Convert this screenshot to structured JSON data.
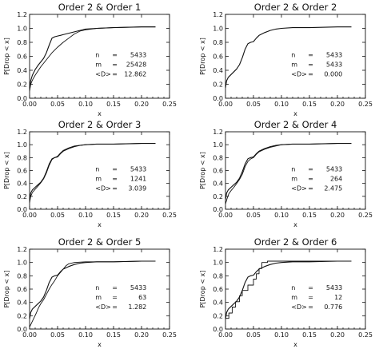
{
  "chart_data": [
    {
      "type": "line",
      "title": "Order 2 & Order 1",
      "xlabel": "x",
      "ylabel": "P[Drop < x]",
      "xlim": [
        0,
        0.25
      ],
      "ylim": [
        0,
        1.2
      ],
      "xticks": [
        "0.00",
        "0.05",
        "0.10",
        "0.15",
        "0.20",
        "0.25"
      ],
      "yticks": [
        "0.0",
        "0.2",
        "0.4",
        "0.6",
        "0.8",
        "1.0",
        "1.2"
      ],
      "stats": {
        "n": "5433",
        "m": "25428",
        "D": "12.862"
      },
      "series": [
        {
          "x": [
            0,
            0.002,
            0.005,
            0.01,
            0.015,
            0.02,
            0.025,
            0.03,
            0.035,
            0.04,
            0.045,
            0.05,
            0.055,
            0.06,
            0.07,
            0.08,
            0.09,
            0.1,
            0.12,
            0.15,
            0.2,
            0.225
          ],
          "y": [
            0.15,
            0.25,
            0.33,
            0.41,
            0.47,
            0.52,
            0.57,
            0.65,
            0.76,
            0.86,
            0.88,
            0.89,
            0.9,
            0.91,
            0.93,
            0.95,
            0.97,
            0.99,
            1.0,
            1.01,
            1.02,
            1.02
          ]
        },
        {
          "x": [
            0,
            0.002,
            0.005,
            0.01,
            0.02,
            0.03,
            0.035,
            0.04,
            0.05,
            0.06,
            0.07,
            0.08,
            0.09,
            0.1,
            0.12,
            0.15,
            0.2,
            0.225
          ],
          "y": [
            0.1,
            0.2,
            0.26,
            0.33,
            0.45,
            0.55,
            0.6,
            0.65,
            0.73,
            0.8,
            0.86,
            0.92,
            0.96,
            0.98,
            1.0,
            1.01,
            1.02,
            1.02
          ]
        }
      ]
    },
    {
      "type": "line",
      "title": "Order 2 & Order 2",
      "xlabel": "x",
      "ylabel": "P[Drop < x]",
      "xlim": [
        0,
        0.25
      ],
      "ylim": [
        0,
        1.2
      ],
      "xticks": [
        "0.00",
        "0.05",
        "0.10",
        "0.15",
        "0.20",
        "0.25"
      ],
      "yticks": [
        "0.0",
        "0.2",
        "0.4",
        "0.6",
        "0.8",
        "1.0",
        "1.2"
      ],
      "stats": {
        "n": "5433",
        "m": "5433",
        "D": "0.000"
      },
      "series": [
        {
          "x": [
            0,
            0.002,
            0.005,
            0.01,
            0.015,
            0.02,
            0.025,
            0.03,
            0.035,
            0.04,
            0.045,
            0.05,
            0.055,
            0.06,
            0.07,
            0.08,
            0.09,
            0.1,
            0.12,
            0.15,
            0.2,
            0.225
          ],
          "y": [
            0.15,
            0.25,
            0.3,
            0.34,
            0.38,
            0.42,
            0.48,
            0.58,
            0.7,
            0.78,
            0.8,
            0.81,
            0.86,
            0.9,
            0.94,
            0.97,
            0.99,
            1.0,
            1.01,
            1.01,
            1.02,
            1.02
          ]
        }
      ]
    },
    {
      "type": "line",
      "title": "Order 2 & Order 3",
      "xlabel": "x",
      "ylabel": "P[Drop < x]",
      "xlim": [
        0,
        0.25
      ],
      "ylim": [
        0,
        1.2
      ],
      "xticks": [
        "0.00",
        "0.05",
        "0.10",
        "0.15",
        "0.20",
        "0.25"
      ],
      "yticks": [
        "0.0",
        "0.2",
        "0.4",
        "0.6",
        "0.8",
        "1.0",
        "1.2"
      ],
      "stats": {
        "n": "5433",
        "m": "1241",
        "D": "3.039"
      },
      "series": [
        {
          "x": [
            0,
            0.002,
            0.005,
            0.01,
            0.015,
            0.02,
            0.025,
            0.03,
            0.035,
            0.04,
            0.045,
            0.05,
            0.055,
            0.06,
            0.07,
            0.08,
            0.09,
            0.1,
            0.12,
            0.15,
            0.2,
            0.225
          ],
          "y": [
            0.15,
            0.25,
            0.3,
            0.34,
            0.38,
            0.42,
            0.48,
            0.58,
            0.7,
            0.78,
            0.8,
            0.81,
            0.86,
            0.9,
            0.94,
            0.97,
            0.99,
            1.0,
            1.01,
            1.01,
            1.02,
            1.02
          ]
        },
        {
          "x": [
            0,
            0.002,
            0.005,
            0.01,
            0.015,
            0.02,
            0.025,
            0.03,
            0.035,
            0.04,
            0.045,
            0.05,
            0.055,
            0.06,
            0.07,
            0.08,
            0.09,
            0.1,
            0.12,
            0.15,
            0.2,
            0.225
          ],
          "y": [
            0.1,
            0.2,
            0.26,
            0.31,
            0.36,
            0.41,
            0.47,
            0.56,
            0.68,
            0.77,
            0.8,
            0.82,
            0.87,
            0.91,
            0.95,
            0.98,
            0.99,
            1.0,
            1.01,
            1.01,
            1.02,
            1.02
          ]
        }
      ]
    },
    {
      "type": "line",
      "title": "Order 2 & Order 4",
      "xlabel": "x",
      "ylabel": "P[Drop < x]",
      "xlim": [
        0,
        0.25
      ],
      "ylim": [
        0,
        1.2
      ],
      "xticks": [
        "0.00",
        "0.05",
        "0.10",
        "0.15",
        "0.20",
        "0.25"
      ],
      "yticks": [
        "0.0",
        "0.2",
        "0.4",
        "0.6",
        "0.8",
        "1.0",
        "1.2"
      ],
      "stats": {
        "n": "5433",
        "m": "264",
        "D": "2.475"
      },
      "series": [
        {
          "x": [
            0,
            0.002,
            0.005,
            0.01,
            0.015,
            0.02,
            0.025,
            0.03,
            0.035,
            0.04,
            0.045,
            0.05,
            0.055,
            0.06,
            0.07,
            0.08,
            0.09,
            0.1,
            0.12,
            0.15,
            0.2,
            0.225
          ],
          "y": [
            0.15,
            0.25,
            0.3,
            0.34,
            0.38,
            0.42,
            0.48,
            0.58,
            0.7,
            0.78,
            0.8,
            0.81,
            0.86,
            0.9,
            0.94,
            0.97,
            0.99,
            1.0,
            1.01,
            1.01,
            1.02,
            1.02
          ]
        },
        {
          "x": [
            0,
            0.003,
            0.006,
            0.01,
            0.015,
            0.02,
            0.025,
            0.03,
            0.035,
            0.04,
            0.045,
            0.05,
            0.055,
            0.06,
            0.07,
            0.08,
            0.09,
            0.1,
            0.12,
            0.15,
            0.2,
            0.225
          ],
          "y": [
            0.08,
            0.17,
            0.24,
            0.29,
            0.34,
            0.4,
            0.46,
            0.54,
            0.66,
            0.74,
            0.78,
            0.8,
            0.85,
            0.89,
            0.93,
            0.96,
            0.98,
            1.0,
            1.01,
            1.01,
            1.02,
            1.02
          ]
        }
      ]
    },
    {
      "type": "line",
      "title": "Order 2 & Order 5",
      "xlabel": "x",
      "ylabel": "P[Drop < x]",
      "xlim": [
        0,
        0.25
      ],
      "ylim": [
        0,
        1.2
      ],
      "xticks": [
        "0.00",
        "0.05",
        "0.10",
        "0.15",
        "0.20",
        "0.25"
      ],
      "yticks": [
        "0.0",
        "0.2",
        "0.4",
        "0.6",
        "0.8",
        "1.0",
        "1.2"
      ],
      "stats": {
        "n": "5433",
        "m": "63",
        "D": "1.282"
      },
      "series": [
        {
          "x": [
            0,
            0.002,
            0.005,
            0.01,
            0.015,
            0.02,
            0.025,
            0.03,
            0.035,
            0.04,
            0.045,
            0.05,
            0.055,
            0.06,
            0.07,
            0.08,
            0.09,
            0.1,
            0.12,
            0.15,
            0.2,
            0.225
          ],
          "y": [
            0.15,
            0.25,
            0.3,
            0.34,
            0.38,
            0.42,
            0.48,
            0.58,
            0.7,
            0.78,
            0.8,
            0.81,
            0.86,
            0.9,
            0.94,
            0.97,
            0.99,
            1.0,
            1.01,
            1.01,
            1.02,
            1.02
          ]
        },
        {
          "x": [
            0,
            0.004,
            0.008,
            0.012,
            0.016,
            0.02,
            0.025,
            0.03,
            0.035,
            0.04,
            0.045,
            0.05,
            0.055,
            0.06,
            0.065,
            0.07,
            0.08,
            0.1,
            0.15,
            0.2,
            0.225
          ],
          "y": [
            0.03,
            0.1,
            0.17,
            0.24,
            0.32,
            0.38,
            0.44,
            0.52,
            0.6,
            0.67,
            0.73,
            0.8,
            0.85,
            0.9,
            0.95,
            0.98,
            1.0,
            1.01,
            1.01,
            1.02,
            1.02
          ]
        }
      ]
    },
    {
      "type": "line",
      "title": "Order 2 & Order 6",
      "xlabel": "x",
      "ylabel": "P[Drop < x]",
      "xlim": [
        0,
        0.25
      ],
      "ylim": [
        0,
        1.2
      ],
      "xticks": [
        "0.00",
        "0.05",
        "0.10",
        "0.15",
        "0.20",
        "0.25"
      ],
      "yticks": [
        "0.0",
        "0.2",
        "0.4",
        "0.6",
        "0.8",
        "1.0",
        "1.2"
      ],
      "stats": {
        "n": "5433",
        "m": "12",
        "D": "0.776"
      },
      "series": [
        {
          "x": [
            0,
            0.002,
            0.005,
            0.01,
            0.015,
            0.02,
            0.025,
            0.03,
            0.035,
            0.04,
            0.045,
            0.05,
            0.055,
            0.06,
            0.07,
            0.08,
            0.09,
            0.1,
            0.12,
            0.15,
            0.2,
            0.225
          ],
          "y": [
            0.15,
            0.25,
            0.3,
            0.34,
            0.38,
            0.42,
            0.48,
            0.58,
            0.7,
            0.78,
            0.8,
            0.81,
            0.86,
            0.9,
            0.94,
            0.97,
            0.99,
            1.0,
            1.01,
            1.01,
            1.02,
            1.02
          ]
        },
        {
          "x": [
            0,
            0.006,
            0.006,
            0.012,
            0.012,
            0.018,
            0.018,
            0.025,
            0.025,
            0.03,
            0.03,
            0.04,
            0.04,
            0.05,
            0.05,
            0.055,
            0.055,
            0.06,
            0.06,
            0.065,
            0.065,
            0.075,
            0.075,
            0.225
          ],
          "y": [
            0.16,
            0.16,
            0.24,
            0.24,
            0.33,
            0.33,
            0.41,
            0.41,
            0.5,
            0.5,
            0.58,
            0.58,
            0.66,
            0.66,
            0.75,
            0.75,
            0.83,
            0.83,
            0.91,
            0.91,
            1.0,
            1.0,
            1.02,
            1.02
          ]
        }
      ]
    }
  ]
}
